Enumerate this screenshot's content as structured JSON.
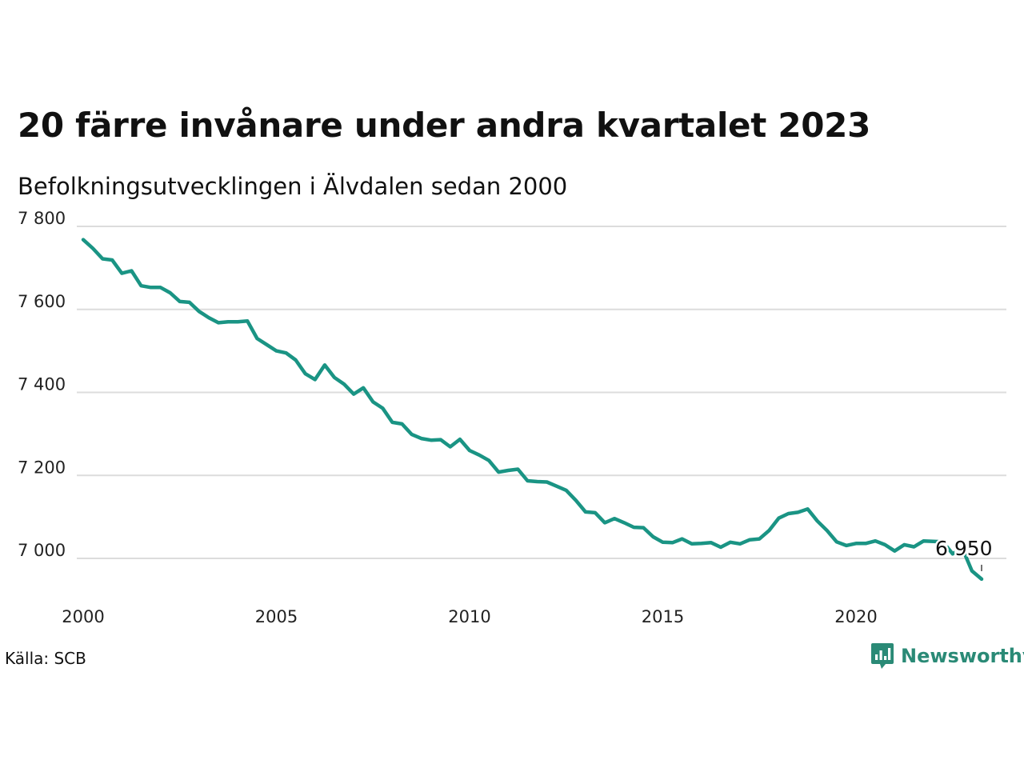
{
  "chart_data": {
    "type": "line",
    "title": "20 färre invånare under andra kvartalet 2023",
    "subtitle": "Befolkningsutvecklingen i Älvdalen sedan 2000",
    "xlabel": "",
    "ylabel": "",
    "x": [
      2000.0,
      2000.25,
      2000.5,
      2000.75,
      2001.0,
      2001.25,
      2001.5,
      2001.75,
      2002.0,
      2002.25,
      2002.5,
      2002.75,
      2003.0,
      2003.25,
      2003.5,
      2003.75,
      2004.0,
      2004.25,
      2004.5,
      2004.75,
      2005.0,
      2005.25,
      2005.5,
      2005.75,
      2006.0,
      2006.25,
      2006.5,
      2006.75,
      2007.0,
      2007.25,
      2007.5,
      2007.75,
      2008.0,
      2008.25,
      2008.5,
      2008.75,
      2009.0,
      2009.25,
      2009.5,
      2009.75,
      2010.0,
      2010.25,
      2010.5,
      2010.75,
      2011.0,
      2011.25,
      2011.5,
      2011.75,
      2012.0,
      2012.25,
      2012.5,
      2012.75,
      2013.0,
      2013.25,
      2013.5,
      2013.75,
      2014.0,
      2014.25,
      2014.5,
      2014.75,
      2015.0,
      2015.25,
      2015.5,
      2015.75,
      2016.0,
      2016.25,
      2016.5,
      2016.75,
      2017.0,
      2017.25,
      2017.5,
      2017.75,
      2018.0,
      2018.25,
      2018.5,
      2018.75,
      2019.0,
      2019.25,
      2019.5,
      2019.75,
      2020.0,
      2020.25,
      2020.5,
      2020.75,
      2021.0,
      2021.25,
      2021.5,
      2021.75,
      2022.0,
      2022.25,
      2022.5,
      2022.75,
      2023.0,
      2023.25
    ],
    "series": [
      {
        "values": [
          7768,
          7747,
          7722,
          7719,
          7687,
          7693,
          7657,
          7653,
          7653,
          7640,
          7619,
          7617,
          7595,
          7580,
          7568,
          7570,
          7570,
          7572,
          7530,
          7515,
          7500,
          7495,
          7478,
          7445,
          7431,
          7466,
          7436,
          7420,
          7396,
          7411,
          7377,
          7362,
          7328,
          7324,
          7299,
          7289,
          7285,
          7286,
          7269,
          7287,
          7260,
          7249,
          7236,
          7208,
          7212,
          7215,
          7187,
          7185,
          7184,
          7174,
          7164,
          7140,
          7112,
          7110,
          7086,
          7096,
          7086,
          7075,
          7074,
          7052,
          7039,
          7038,
          7047,
          7035,
          7036,
          7038,
          7027,
          7039,
          7035,
          7045,
          7047,
          7067,
          7097,
          7108,
          7111,
          7119,
          7090,
          7067,
          7040,
          7031,
          7036,
          7036,
          7042,
          7033,
          7018,
          7033,
          7028,
          7042,
          7041,
          7040,
          7011,
          7025,
          6970,
          6950
        ],
        "color": "#1a9484"
      }
    ],
    "xlim": [
      2000,
      2023.75
    ],
    "ylim": [
      6950,
      7800
    ],
    "xticks": [
      {
        "value": 2000,
        "label": "2000"
      },
      {
        "value": 2005,
        "label": "2005"
      },
      {
        "value": 2010,
        "label": "2010"
      },
      {
        "value": 2015,
        "label": "2015"
      },
      {
        "value": 2020,
        "label": "2020"
      }
    ],
    "yticks": [
      {
        "value": 7000,
        "label": "7 000"
      },
      {
        "value": 7200,
        "label": "7 200"
      },
      {
        "value": 7400,
        "label": "7 400"
      },
      {
        "value": 7600,
        "label": "7 600"
      },
      {
        "value": 7800,
        "label": "7 800"
      }
    ],
    "grid": true,
    "annotations": [
      {
        "x": 2023.25,
        "y": 6950,
        "text": "6 950"
      }
    ]
  },
  "source": "Källa: SCB",
  "brand": {
    "name": "Newsworthy",
    "color": "#2a8a76",
    "icon": "bar-chart-speech-bubble-icon"
  }
}
